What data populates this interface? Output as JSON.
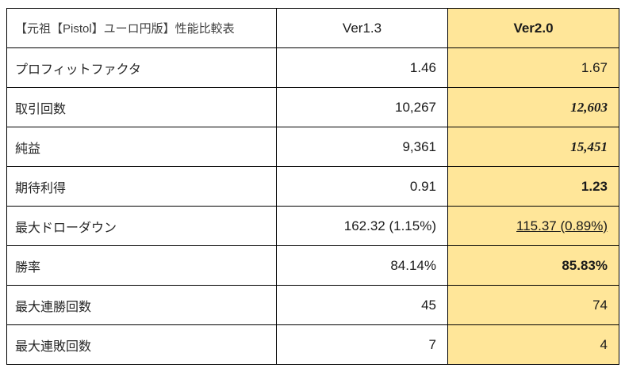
{
  "table": {
    "title": "【元祖【Pistol】ユーロ円版】性能比較表",
    "columns": [
      "Ver1.3",
      "Ver2.0"
    ],
    "rows": [
      {
        "label": "プロフィットファクタ",
        "ver13": "1.46",
        "ver20": "1.67"
      },
      {
        "label": "取引回数",
        "ver13": "10,267",
        "ver20": "12,603"
      },
      {
        "label": "純益",
        "ver13": "9,361",
        "ver20": "15,451"
      },
      {
        "label": "期待利得",
        "ver13": "0.91",
        "ver20": "1.23"
      },
      {
        "label": "最大ドローダウン",
        "ver13": "162.32 (1.15%)",
        "ver20": "115.37 (0.89%)"
      },
      {
        "label": "勝率",
        "ver13": "84.14%",
        "ver20": "85.83%"
      },
      {
        "label": "最大連勝回数",
        "ver13": "45",
        "ver20": "74"
      },
      {
        "label": "最大連敗回数",
        "ver13": "7",
        "ver20": "4"
      }
    ],
    "colors": {
      "highlight_bg": "#FFE699",
      "accent_blue": "#1F5FA9",
      "border": "#000000"
    }
  },
  "chart_data": {
    "type": "table",
    "title": "【元祖【Pistol】ユーロ円版】性能比較表",
    "categories": [
      "プロフィットファクタ",
      "取引回数",
      "純益",
      "期待利得",
      "最大ドローダウン",
      "勝率",
      "最大連勝回数",
      "最大連敗回数"
    ],
    "series": [
      {
        "name": "Ver1.3",
        "values": [
          "1.46",
          "10,267",
          "9,361",
          "0.91",
          "162.32 (1.15%)",
          "84.14%",
          "45",
          "7"
        ]
      },
      {
        "name": "Ver2.0",
        "values": [
          "1.67",
          "12,603",
          "15,451",
          "1.23",
          "115.37 (0.89%)",
          "85.83%",
          "74",
          "4"
        ]
      }
    ],
    "legend_position": "none",
    "grid": true
  }
}
